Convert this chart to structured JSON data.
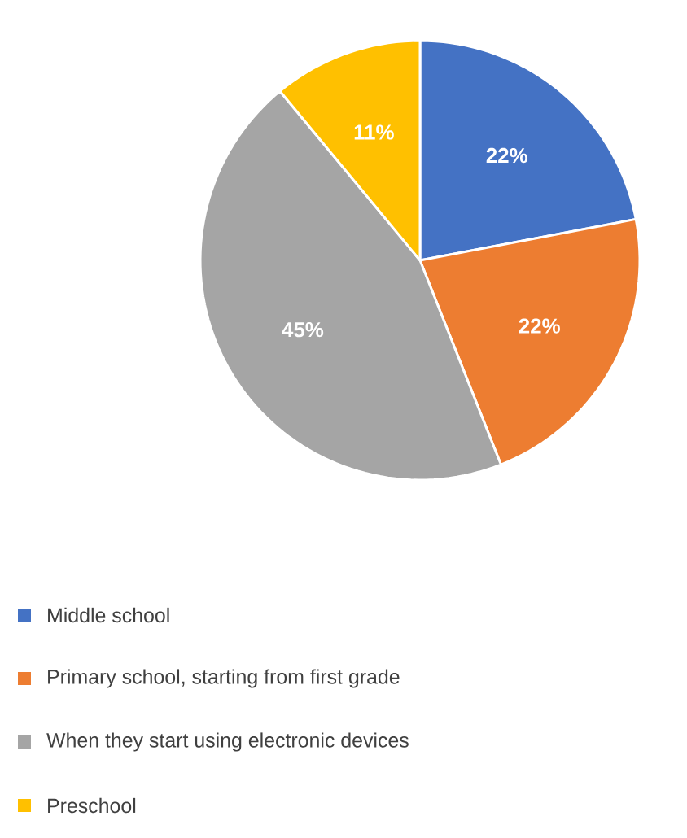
{
  "chart_data": {
    "type": "pie",
    "categories": [
      "Middle school",
      "Primary school, starting from first grade",
      "When they start using electronic devices",
      "Preschool"
    ],
    "values": [
      22,
      22,
      45,
      11
    ],
    "colors": [
      "#4472c4",
      "#ed7d31",
      "#a5a5a5",
      "#ffc000"
    ],
    "value_labels": [
      "22%",
      "22%",
      "45%",
      "11%"
    ],
    "legend": "bottom"
  }
}
